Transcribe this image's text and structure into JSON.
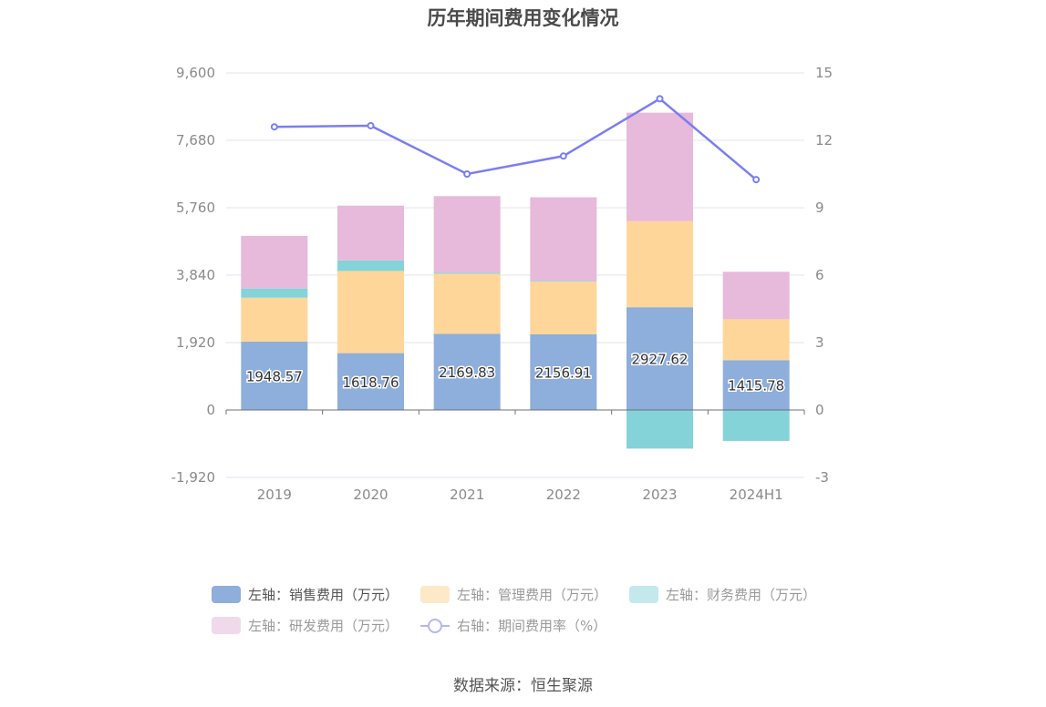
{
  "title": "历年期间费用变化情况",
  "source": "数据来源：恒生聚源",
  "legend": {
    "sales": "左轴：销售费用（万元）",
    "admin": "左轴：管理费用（万元）",
    "finance": "左轴：财务费用（万元）",
    "rnd": "左轴：研发费用（万元）",
    "rate": "右轴：期间费用率（%）"
  },
  "colors": {
    "sales": "#8eaedb",
    "admin": "#ffd699",
    "finance": "#83d3d8",
    "rnd": "#e7b9da",
    "rate": "#7b7ef0",
    "sales_legend": "#8eaedb",
    "admin_legend": "#fde9c8",
    "finance_legend": "#c3e9ec",
    "rnd_legend": "#f0d9ea",
    "rate_legend": "#b3b6f5"
  },
  "chart_data": {
    "type": "bar",
    "stacked": true,
    "categories": [
      "2019",
      "2020",
      "2021",
      "2022",
      "2023",
      "2024H1"
    ],
    "series": [
      {
        "name": "左轴：销售费用（万元）",
        "key": "sales",
        "axis": "left",
        "values": [
          1948.57,
          1618.76,
          2169.83,
          2156.91,
          2927.62,
          1415.78
        ],
        "labels": [
          "1948.57",
          "1618.76",
          "2169.83",
          "2156.91",
          "2927.62",
          "1415.78"
        ]
      },
      {
        "name": "左轴：管理费用（万元）",
        "key": "admin",
        "axis": "left",
        "values": [
          1250,
          2340,
          1710,
          1500,
          2450,
          1170
        ]
      },
      {
        "name": "左轴：财务费用（万元）",
        "key": "finance",
        "axis": "left",
        "values": [
          260,
          300,
          30,
          20,
          -1100,
          -880
        ]
      },
      {
        "name": "左轴：研发费用（万元）",
        "key": "rnd",
        "axis": "left",
        "values": [
          1500,
          1560,
          2180,
          2380,
          3090,
          1350
        ]
      },
      {
        "name": "右轴：期间费用率（%）",
        "key": "rate",
        "axis": "right",
        "type": "line",
        "values": [
          12.6,
          12.65,
          10.5,
          11.3,
          13.85,
          10.25
        ]
      }
    ],
    "left_axis": {
      "min": -1920,
      "max": 9600,
      "ticks": [
        "-1,920",
        "0",
        "1,920",
        "3,840",
        "5,760",
        "7,680",
        "9,600"
      ],
      "tick_values": [
        -1920,
        0,
        1920,
        3840,
        5760,
        7680,
        9600
      ]
    },
    "right_axis": {
      "min": -3,
      "max": 15,
      "ticks": [
        "-3",
        "0",
        "3",
        "6",
        "9",
        "12",
        "15"
      ],
      "tick_values": [
        -3,
        0,
        3,
        6,
        9,
        12,
        15
      ]
    },
    "grid": true,
    "legend_position": "bottom"
  }
}
